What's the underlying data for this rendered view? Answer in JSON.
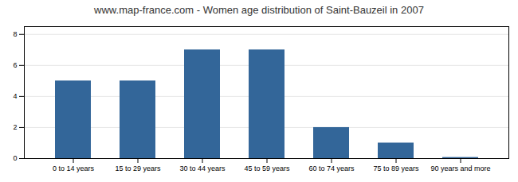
{
  "chart_data": {
    "type": "bar",
    "title": "www.map-france.com - Women age distribution of Saint-Bauzeil in 2007",
    "categories": [
      "0 to 14 years",
      "15 to 29 years",
      "30 to 44 years",
      "45 to 59 years",
      "60 to 74 years",
      "75 to 89 years",
      "90 years and more"
    ],
    "values": [
      5,
      5,
      7,
      7,
      2,
      1,
      0.07
    ],
    "color": "#336699",
    "ylim": [
      0,
      8.5
    ],
    "yticks": [
      0,
      2,
      4,
      6,
      8
    ],
    "grid": true
  }
}
